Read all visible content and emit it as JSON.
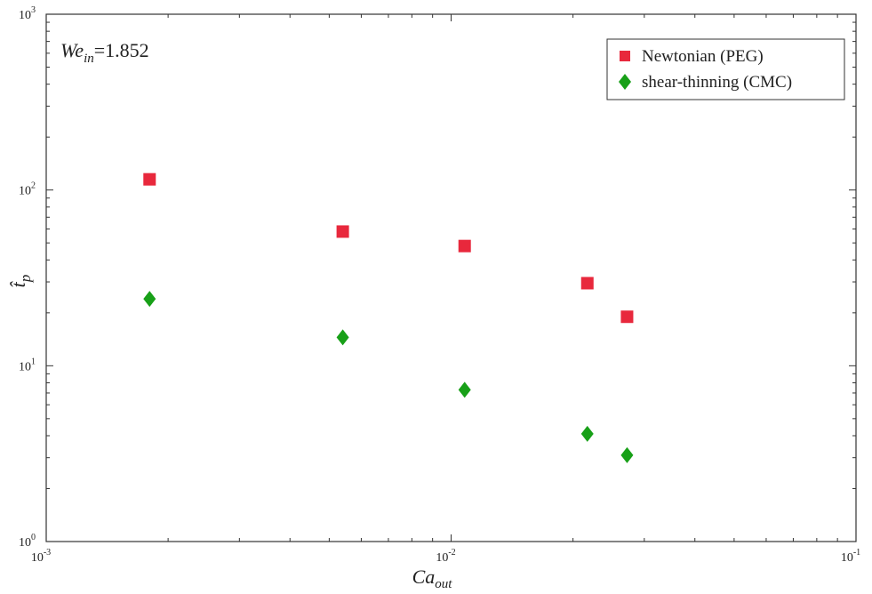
{
  "chart_data": {
    "type": "scatter",
    "x_scale": "log",
    "y_scale": "log",
    "xlim": [
      0.001,
      0.1
    ],
    "ylim": [
      1,
      1000
    ],
    "x_ticks": [
      {
        "base": "10",
        "exp": "-3"
      },
      {
        "base": "10",
        "exp": "-2"
      },
      {
        "base": "10",
        "exp": "-1"
      }
    ],
    "y_ticks": [
      {
        "base": "10",
        "exp": "0"
      },
      {
        "base": "10",
        "exp": "1"
      },
      {
        "base": "10",
        "exp": "2"
      },
      {
        "base": "10",
        "exp": "3"
      }
    ],
    "xlabel": {
      "main": "Ca",
      "sub": "out"
    },
    "ylabel": {
      "main": "t̂",
      "sub": "p"
    },
    "annotation": {
      "main": "We",
      "sub": "in",
      "value": "=1.852"
    },
    "grid": false,
    "legend_position": "top-right",
    "series": [
      {
        "name": "Newtonian (PEG)",
        "marker": "square",
        "color": "#e8283c",
        "x": [
          0.0018,
          0.0054,
          0.0108,
          0.0217,
          0.0272
        ],
        "y": [
          115,
          58,
          48,
          29.5,
          19
        ]
      },
      {
        "name": "shear-thinning (CMC)",
        "marker": "diamond",
        "color": "#18a018",
        "x": [
          0.0018,
          0.0054,
          0.0108,
          0.0217,
          0.0272
        ],
        "y": [
          24,
          14.5,
          7.3,
          4.1,
          3.1
        ]
      }
    ]
  }
}
